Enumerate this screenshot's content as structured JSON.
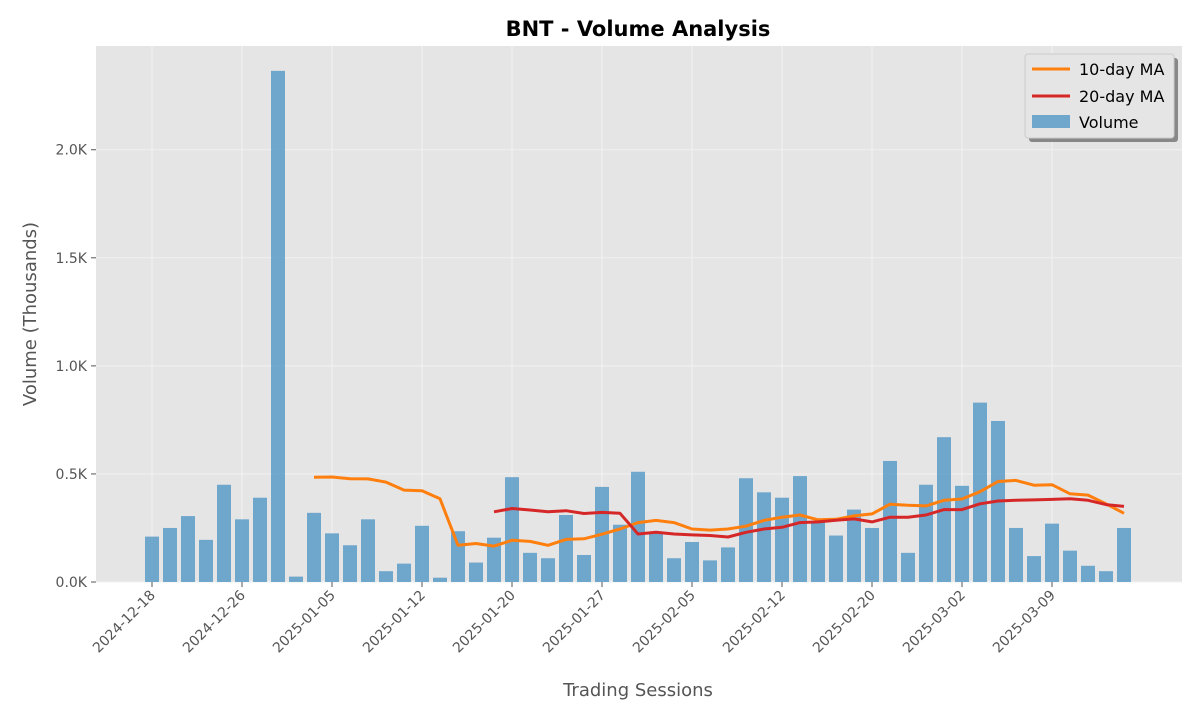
{
  "chart_data": {
    "type": "bar",
    "title": "BNT - Volume Analysis",
    "xlabel": "Trading Sessions",
    "ylabel": "Volume (Thousands)",
    "ylim": [
      0,
      2480
    ],
    "y_ticks": [
      {
        "value": 0,
        "label": "0.0K"
      },
      {
        "value": 500,
        "label": "0.5K"
      },
      {
        "value": 1000,
        "label": "1.0K"
      },
      {
        "value": 1500,
        "label": "1.5K"
      },
      {
        "value": 2000,
        "label": "2.0K"
      }
    ],
    "x_ticks": [
      {
        "index": 0,
        "label": "2024-12-18"
      },
      {
        "index": 5,
        "label": "2024-12-26"
      },
      {
        "index": 10,
        "label": "2025-01-05"
      },
      {
        "index": 15,
        "label": "2025-01-12"
      },
      {
        "index": 20,
        "label": "2025-01-20"
      },
      {
        "index": 25,
        "label": "2025-01-27"
      },
      {
        "index": 30,
        "label": "2025-02-05"
      },
      {
        "index": 35,
        "label": "2025-02-12"
      },
      {
        "index": 40,
        "label": "2025-02-20"
      },
      {
        "index": 45,
        "label": "2025-03-02"
      },
      {
        "index": 50,
        "label": "2025-03-09"
      }
    ],
    "grid": true,
    "legend_position": "top-right",
    "colors": {
      "volume": "#5b9bc8",
      "ma10": "#ff7f0e",
      "ma20": "#d62728",
      "plot_bg": "#e5e5e5",
      "grid": "#f2f2f2"
    },
    "series": [
      {
        "name": "Volume",
        "type": "bar",
        "values": [
          210,
          250,
          305,
          195,
          450,
          290,
          390,
          2365,
          25,
          320,
          225,
          170,
          290,
          50,
          85,
          260,
          20,
          235,
          90,
          205,
          485,
          135,
          110,
          310,
          125,
          440,
          265,
          510,
          225,
          110,
          185,
          100,
          160,
          480,
          415,
          390,
          490,
          280,
          215,
          335,
          250,
          560,
          135,
          450,
          670,
          445,
          830,
          745,
          250,
          120,
          270,
          145,
          75,
          50,
          250
        ]
      },
      {
        "name": "10-day MA",
        "type": "line",
        "values": [
          null,
          null,
          null,
          null,
          null,
          null,
          null,
          null,
          null,
          485,
          486,
          478,
          477,
          462,
          425,
          422,
          385,
          170,
          178,
          166,
          193,
          188,
          170,
          197,
          200,
          221,
          245,
          275,
          285,
          275,
          245,
          240,
          245,
          258,
          285,
          300,
          310,
          288,
          290,
          306,
          315,
          360,
          355,
          352,
          378,
          384,
          418,
          465,
          470,
          448,
          450,
          408,
          402,
          362,
          318
        ]
      },
      {
        "name": "20-day MA",
        "type": "line",
        "values": [
          null,
          null,
          null,
          null,
          null,
          null,
          null,
          null,
          null,
          null,
          null,
          null,
          null,
          null,
          null,
          null,
          null,
          null,
          null,
          325,
          340,
          333,
          325,
          330,
          317,
          322,
          318,
          222,
          230,
          222,
          218,
          215,
          208,
          230,
          245,
          253,
          275,
          278,
          286,
          292,
          278,
          300,
          300,
          310,
          335,
          335,
          362,
          375,
          378,
          380,
          382,
          385,
          378,
          358,
          350
        ]
      }
    ]
  }
}
